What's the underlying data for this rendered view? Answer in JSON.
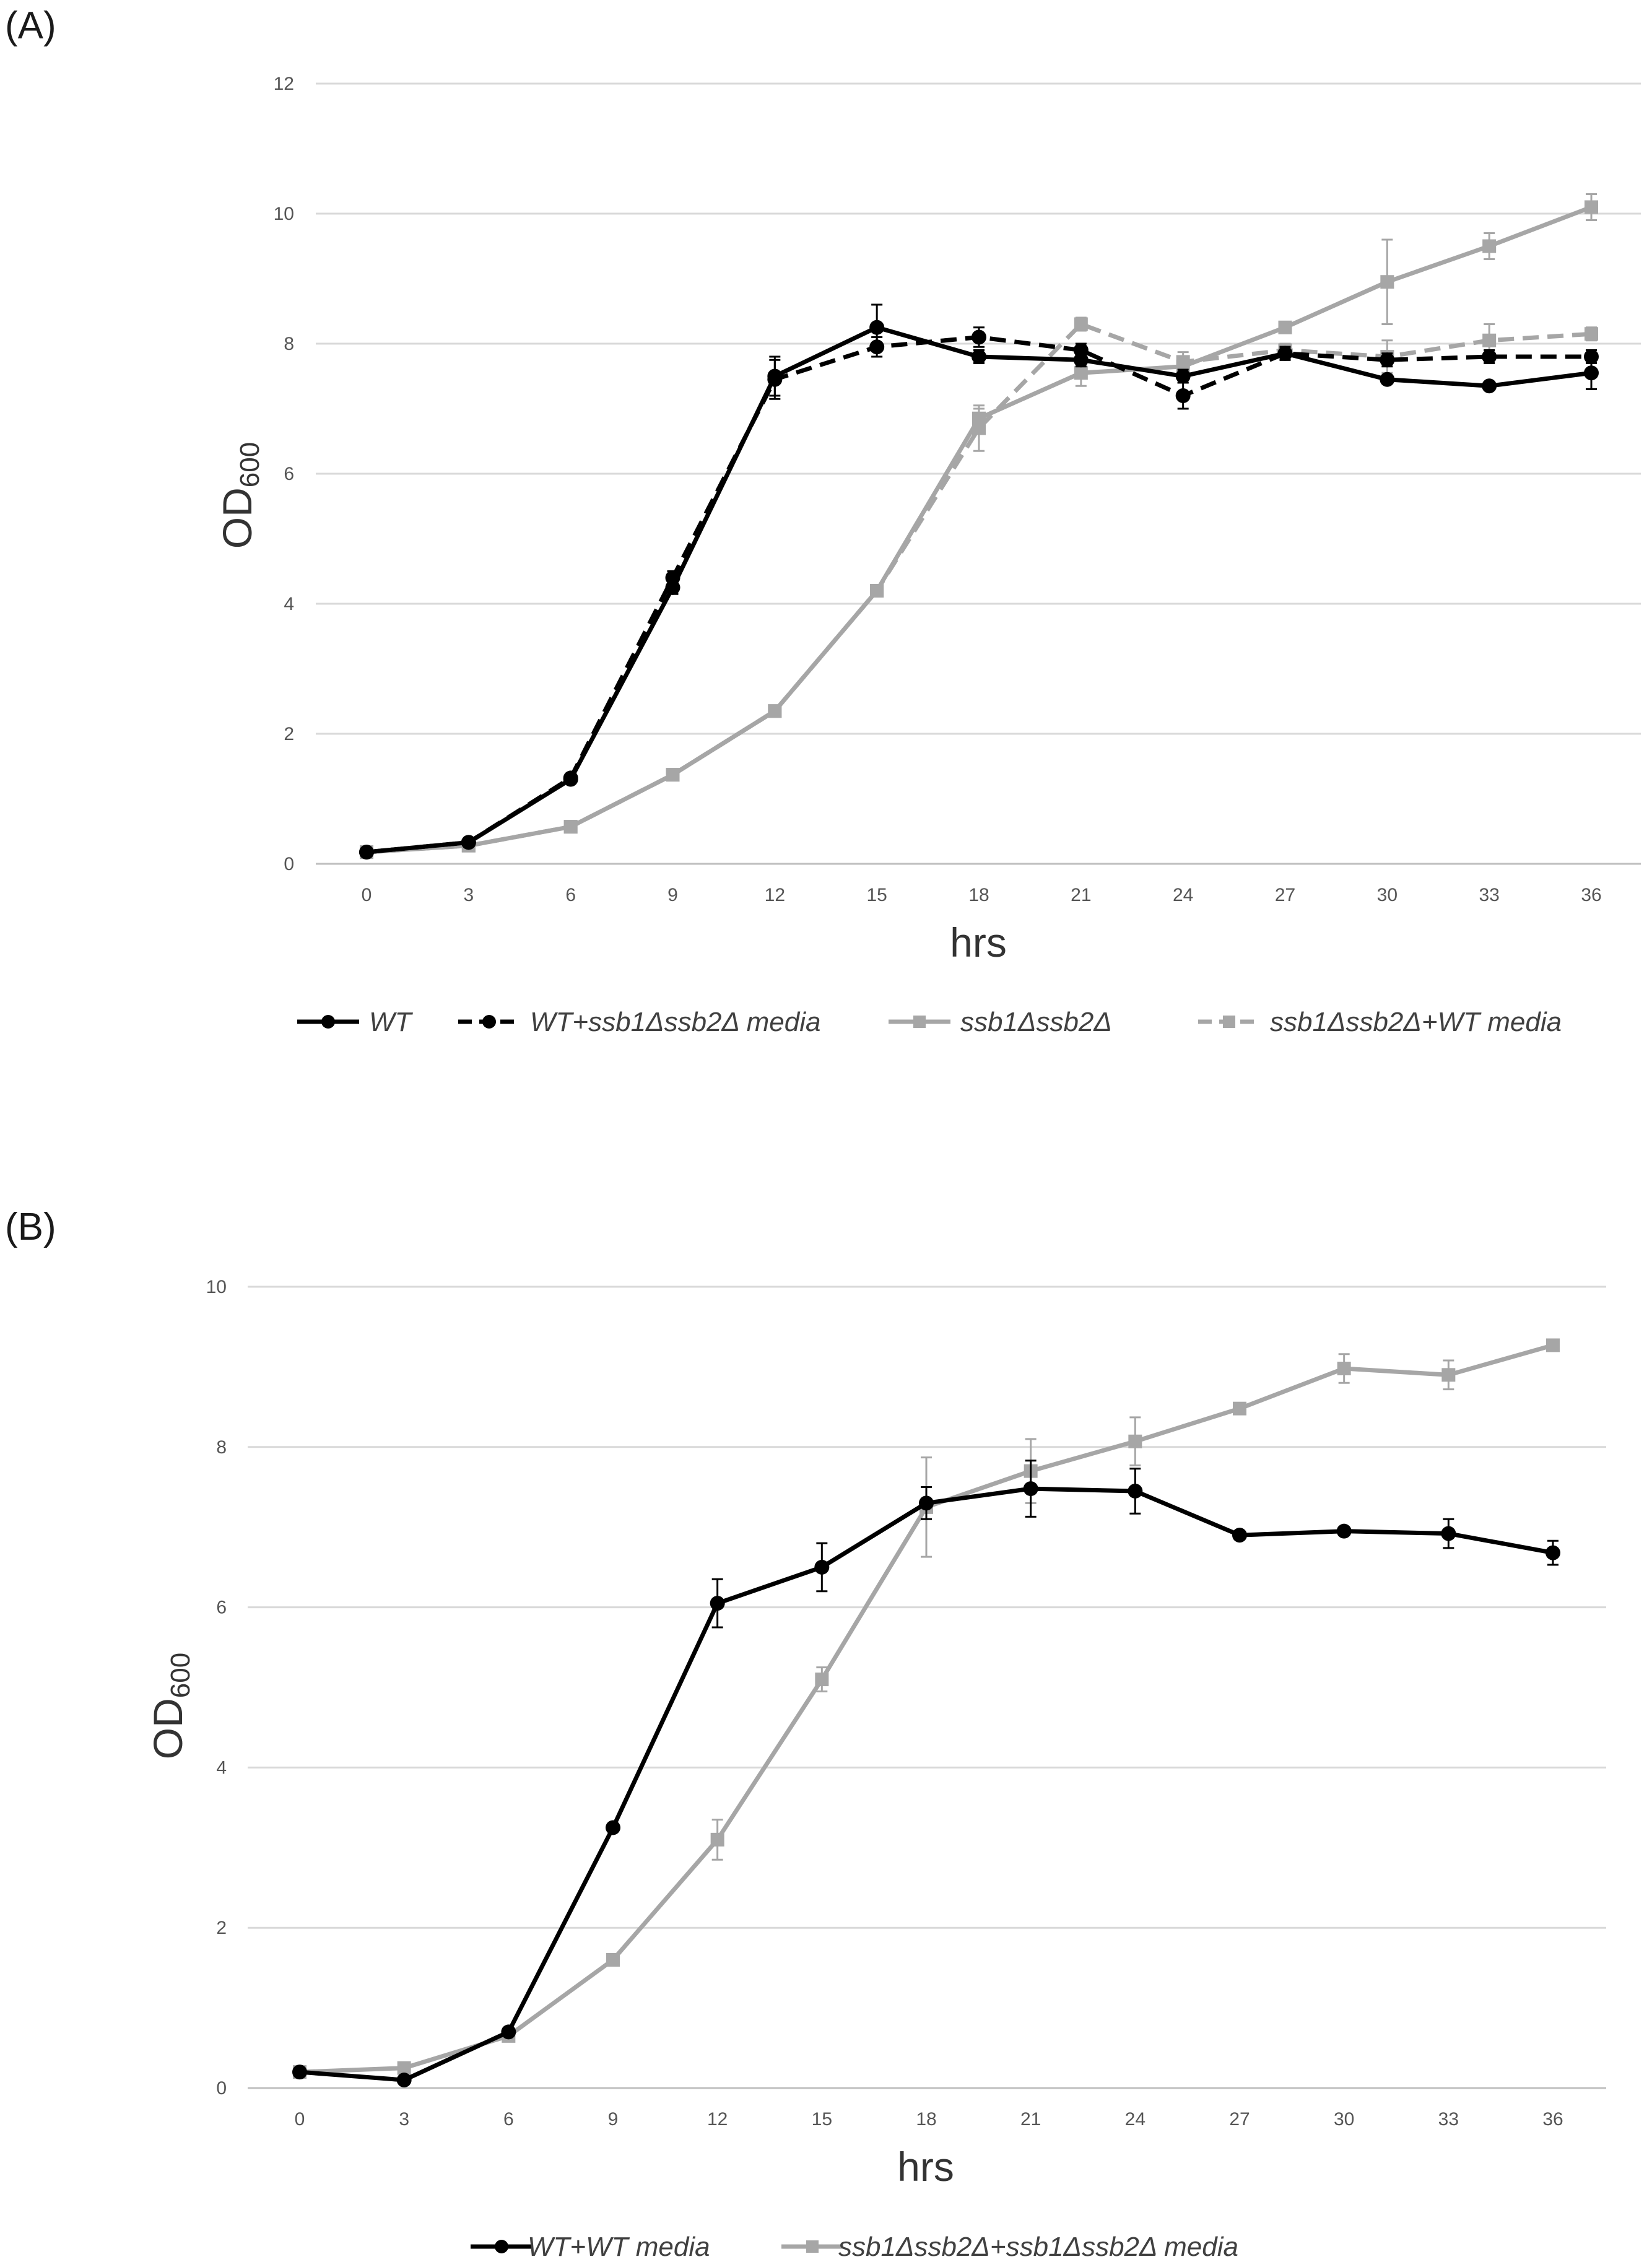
{
  "chart_data": [
    {
      "panel": "(A)",
      "type": "line",
      "xlabel": "hrs",
      "ylabel": "OD",
      "ylabel_sub": "600",
      "x": [
        0,
        3,
        6,
        9,
        12,
        15,
        18,
        21,
        24,
        27,
        30,
        33,
        36
      ],
      "x_ticks": [
        "0",
        "3",
        "6",
        "9",
        "12",
        "15",
        "18",
        "21",
        "24",
        "27",
        "30",
        "33",
        "36"
      ],
      "y_ticks": [
        "0",
        "2",
        "4",
        "6",
        "8",
        "10",
        "12"
      ],
      "ylim": [
        0,
        12
      ],
      "grid": true,
      "legend_position": "bottom",
      "series": [
        {
          "name": "WT",
          "color": "#000000",
          "dash": "solid",
          "marker": "circle",
          "values": [
            0.18,
            0.33,
            1.3,
            4.25,
            7.5,
            8.25,
            7.8,
            7.75,
            7.5,
            7.85,
            7.45,
            7.35,
            7.55
          ],
          "errors": [
            0.02,
            0.02,
            0.05,
            0.1,
            0.3,
            0.35,
            0.1,
            0.1,
            0.1,
            0.1,
            0.05,
            0.05,
            0.25
          ]
        },
        {
          "name": "WT+ssb1Δssb2Δ media",
          "color": "#000000",
          "dash": "dashed",
          "marker": "circle",
          "values": [
            0.18,
            0.33,
            1.32,
            4.4,
            7.45,
            7.95,
            8.1,
            7.9,
            7.2,
            7.85,
            7.75,
            7.8,
            7.8
          ],
          "errors": [
            0.02,
            0.02,
            0.05,
            0.1,
            0.3,
            0.15,
            0.15,
            0.1,
            0.2,
            0.1,
            0.1,
            0.1,
            0.1
          ]
        },
        {
          "name": "ssb1Δssb2Δ",
          "color": "#a6a6a6",
          "dash": "solid",
          "marker": "square",
          "values": [
            0.18,
            0.28,
            0.57,
            1.37,
            2.35,
            4.2,
            6.85,
            7.55,
            7.65,
            8.25,
            8.95,
            9.5,
            10.1
          ],
          "errors": [
            0.02,
            0.02,
            0.03,
            0.05,
            0.05,
            0.05,
            0.15,
            0.2,
            0.15,
            0.05,
            0.65,
            0.2,
            0.2
          ]
        },
        {
          "name": "ssb1Δssb2Δ+WT media",
          "color": "#a6a6a6",
          "dash": "dashed",
          "marker": "square",
          "values": [
            0.18,
            0.28,
            0.57,
            1.37,
            2.35,
            4.2,
            6.7,
            8.3,
            7.72,
            7.9,
            7.8,
            8.05,
            8.15
          ],
          "errors": [
            0.02,
            0.02,
            0.03,
            0.05,
            0.05,
            0.05,
            0.35,
            0.1,
            0.15,
            0.1,
            0.25,
            0.25,
            0.1
          ]
        }
      ]
    },
    {
      "panel": "(B)",
      "type": "line",
      "xlabel": "hrs",
      "ylabel": "OD",
      "ylabel_sub": "600",
      "x": [
        0,
        3,
        6,
        9,
        12,
        15,
        18,
        21,
        24,
        27,
        30,
        33,
        36
      ],
      "x_ticks": [
        "0",
        "3",
        "6",
        "9",
        "12",
        "15",
        "18",
        "21",
        "24",
        "27",
        "30",
        "33",
        "36"
      ],
      "y_ticks": [
        "0",
        "2",
        "4",
        "6",
        "8",
        "10"
      ],
      "ylim": [
        0,
        10
      ],
      "grid": true,
      "legend_position": "bottom",
      "series": [
        {
          "name": "WT+WT media",
          "color": "#000000",
          "dash": "solid",
          "marker": "circle",
          "values": [
            0.2,
            0.1,
            0.7,
            3.25,
            6.05,
            6.5,
            7.3,
            7.48,
            7.45,
            6.9,
            6.95,
            6.92,
            6.68
          ],
          "errors": [
            0.02,
            0.02,
            0.05,
            0.05,
            0.3,
            0.3,
            0.2,
            0.35,
            0.28,
            0.05,
            0.05,
            0.18,
            0.15
          ]
        },
        {
          "name": "ssb1Δssb2Δ+ssb1Δssb2Δ media",
          "color": "#a6a6a6",
          "dash": "solid",
          "marker": "square",
          "values": [
            0.2,
            0.25,
            0.65,
            1.6,
            3.1,
            5.1,
            7.25,
            7.7,
            8.07,
            8.48,
            8.98,
            8.9,
            9.27
          ],
          "errors": [
            0.02,
            0.02,
            0.05,
            0.05,
            0.25,
            0.15,
            0.62,
            0.4,
            0.3,
            0.05,
            0.18,
            0.18,
            0.05
          ]
        }
      ]
    }
  ]
}
